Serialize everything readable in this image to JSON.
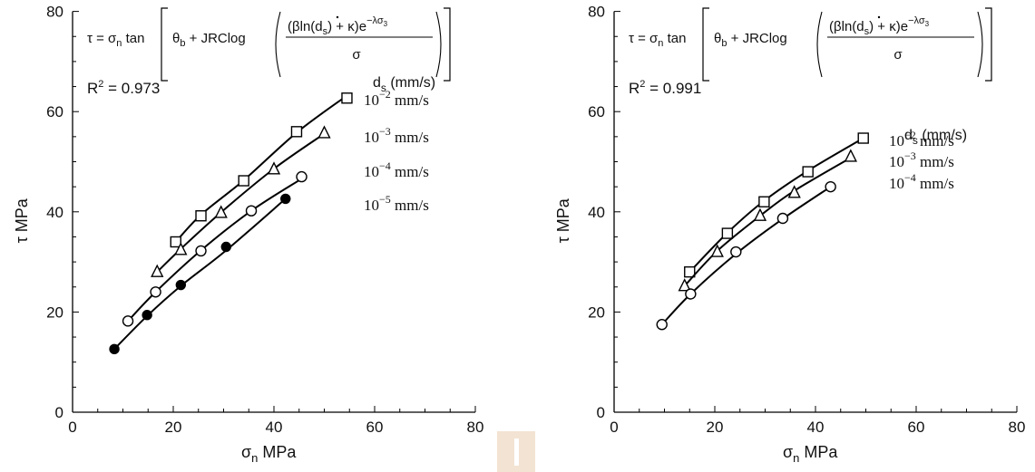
{
  "chart_data": [
    {
      "type": "scatter",
      "equation": {
        "lhs": "τ = σ",
        "lhs_sub": "n",
        "tan": "tan",
        "theta": "θ",
        "theta_sub": "b",
        "plus_jrc": "+ JRClog",
        "num_a": "βln",
        "num_d": "d",
        "num_d_sub": "s",
        "num_b": "+ κ",
        "num_e": "e",
        "num_exp": "−λσ",
        "num_exp_sub": "3",
        "den": "σ"
      },
      "r2_label": "R",
      "r2_sup": "2",
      "r2_value": "= 0.973",
      "xlabel": "σ",
      "xlabel_sub": "n",
      "xlabel_unit": "MPa",
      "ylabel": "τ MPa",
      "xlim": [
        0,
        80
      ],
      "ylim": [
        0,
        80
      ],
      "xticks": [
        "0",
        "20",
        "40",
        "60",
        "80"
      ],
      "yticks": [
        "0",
        "20",
        "40",
        "60",
        "80"
      ],
      "legend_title": "d",
      "legend_title_sub": "s",
      "legend_title_unit": "(mm/s)",
      "series": [
        {
          "name": "10",
          "exp": "−2",
          "unit": "mm/s",
          "marker": "square",
          "points": [
            [
              20.5,
              34
            ],
            [
              25.5,
              39.2
            ],
            [
              34,
              46.2
            ],
            [
              44.5,
              56
            ],
            [
              54.5,
              62.7
            ]
          ],
          "curve": [
            [
              20.5,
              34
            ],
            [
              25.5,
              39.4
            ],
            [
              34,
              46.3
            ],
            [
              44.5,
              55.8
            ],
            [
              54.5,
              63.2
            ]
          ]
        },
        {
          "name": "10",
          "exp": "−3",
          "unit": "mm/s",
          "marker": "triangle",
          "points": [
            [
              16.8,
              28
            ],
            [
              21.5,
              32.4
            ],
            [
              29.5,
              39.8
            ],
            [
              40,
              48.5
            ],
            [
              50,
              55.7
            ]
          ],
          "curve": [
            [
              16.8,
              28
            ],
            [
              21.5,
              32.6
            ],
            [
              29.5,
              39.9
            ],
            [
              40,
              48.6
            ],
            [
              50,
              55.6
            ]
          ]
        },
        {
          "name": "10",
          "exp": "−4",
          "unit": "mm/s",
          "marker": "circle",
          "points": [
            [
              11,
              18.2
            ],
            [
              16.5,
              24
            ],
            [
              25.5,
              32.2
            ],
            [
              35.5,
              40.2
            ],
            [
              45.5,
              47
            ]
          ],
          "curve": [
            [
              11,
              18.2
            ],
            [
              16.5,
              24
            ],
            [
              25.5,
              32.3
            ],
            [
              35.5,
              40.2
            ],
            [
              45.5,
              46.6
            ]
          ]
        },
        {
          "name": "10",
          "exp": "−5",
          "unit": "mm/s",
          "marker": "filled-circle",
          "points": [
            [
              8.3,
              12.6
            ],
            [
              14.8,
              19.4
            ],
            [
              21.5,
              25.4
            ],
            [
              30.5,
              33
            ],
            [
              42.3,
              42.6
            ]
          ],
          "curve": [
            [
              8.3,
              12.6
            ],
            [
              14.8,
              19.2
            ],
            [
              21.5,
              25.2
            ],
            [
              30.5,
              32.3
            ],
            [
              42.3,
              42.6
            ]
          ]
        }
      ]
    },
    {
      "type": "scatter",
      "equation": {
        "lhs": "τ = σ",
        "lhs_sub": "n",
        "tan": "tan",
        "theta": "θ",
        "theta_sub": "b",
        "plus_jrc": "+ JRClog",
        "num_a": "βln",
        "num_d": "d",
        "num_d_sub": "s",
        "num_b": "+ κ",
        "num_e": "e",
        "num_exp": "−λσ",
        "num_exp_sub": "3",
        "den": "σ"
      },
      "r2_label": "R",
      "r2_sup": "2",
      "r2_value": "= 0.991",
      "xlabel": "σ",
      "xlabel_sub": "n",
      "xlabel_unit": "MPa",
      "ylabel": "τ MPa",
      "xlim": [
        0,
        80
      ],
      "ylim": [
        0,
        80
      ],
      "xticks": [
        "0",
        "20",
        "40",
        "60",
        "80"
      ],
      "yticks": [
        "0",
        "20",
        "40",
        "60",
        "80"
      ],
      "legend_title": "d",
      "legend_title_sub": "s",
      "legend_title_unit": "(mm/s)",
      "series": [
        {
          "name": "10",
          "exp": "−2",
          "unit": "mm/s",
          "marker": "square",
          "points": [
            [
              15,
              28
            ],
            [
              22.5,
              35.7
            ],
            [
              29.8,
              42
            ],
            [
              38.5,
              48
            ],
            [
              49.5,
              54.7
            ]
          ],
          "curve": [
            [
              15,
              28
            ],
            [
              22.5,
              35.8
            ],
            [
              29.8,
              42.2
            ],
            [
              38.5,
              48.2
            ],
            [
              49.5,
              54.7
            ]
          ]
        },
        {
          "name": "10",
          "exp": "−3",
          "unit": "mm/s",
          "marker": "triangle",
          "points": [
            [
              14,
              25.2
            ],
            [
              20.5,
              32
            ],
            [
              29,
              39.2
            ],
            [
              35.8,
              43.8
            ],
            [
              47,
              51
            ]
          ],
          "curve": [
            [
              14,
              25.2
            ],
            [
              20.5,
              32.2
            ],
            [
              29,
              39.2
            ],
            [
              35.8,
              44.2
            ],
            [
              47,
              50.8
            ]
          ]
        },
        {
          "name": "10",
          "exp": "−4",
          "unit": "mm/s",
          "marker": "circle",
          "points": [
            [
              9.5,
              17.5
            ],
            [
              15.2,
              23.6
            ],
            [
              24.2,
              32
            ],
            [
              33.5,
              38.7
            ],
            [
              43,
              45
            ]
          ],
          "curve": [
            [
              9.5,
              17.5
            ],
            [
              15.2,
              23.6
            ],
            [
              24.2,
              31.6
            ],
            [
              33.5,
              38.6
            ],
            [
              43,
              45
            ]
          ]
        }
      ]
    }
  ]
}
